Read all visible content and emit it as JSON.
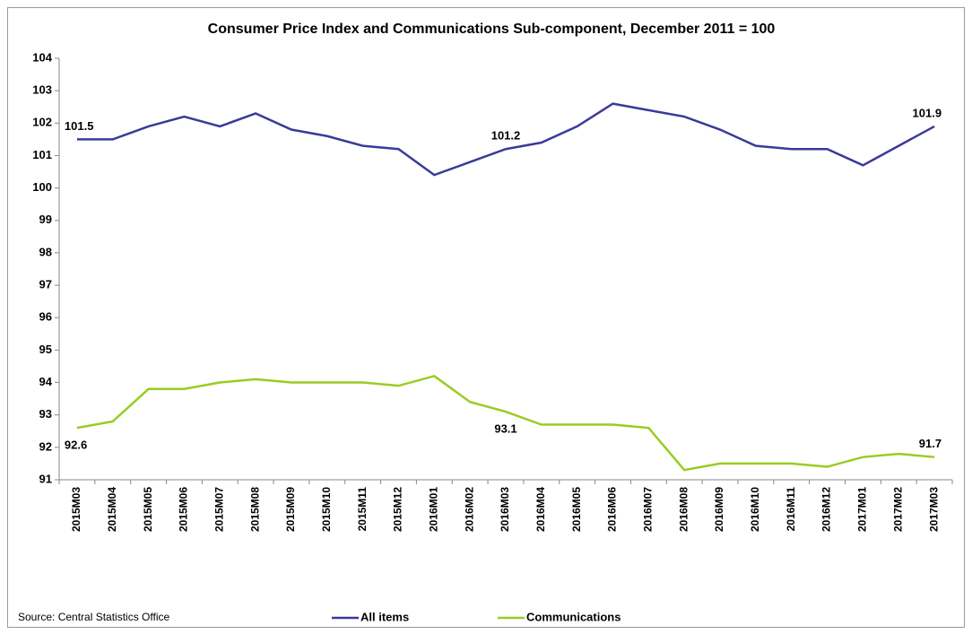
{
  "chart_data": {
    "type": "line",
    "title": "Consumer Price Index and Communications Sub-component, December 2011 = 100",
    "source": "Source: Central Statistics Office",
    "categories": [
      "2015M03",
      "2015M04",
      "2015M05",
      "2015M06",
      "2015M07",
      "2015M08",
      "2015M09",
      "2015M10",
      "2015M11",
      "2015M12",
      "2016M01",
      "2016M02",
      "2016M03",
      "2016M04",
      "2016M05",
      "2016M06",
      "2016M07",
      "2016M08",
      "2016M09",
      "2016M10",
      "2016M11",
      "2016M12",
      "2017M01",
      "2017M02",
      "2017M03"
    ],
    "series": [
      {
        "name": "All items",
        "color": "#3a3a9a",
        "values": [
          101.5,
          101.5,
          101.9,
          102.2,
          101.9,
          102.3,
          101.8,
          101.6,
          101.3,
          101.2,
          100.4,
          100.8,
          101.2,
          101.4,
          101.9,
          102.6,
          102.4,
          102.2,
          101.8,
          101.3,
          101.2,
          101.2,
          100.7,
          101.3,
          101.9
        ],
        "value_labels": [
          "101.5",
          null,
          null,
          null,
          null,
          null,
          null,
          null,
          null,
          null,
          null,
          null,
          "101.2",
          null,
          null,
          null,
          null,
          null,
          null,
          null,
          null,
          null,
          null,
          null,
          "101.9"
        ]
      },
      {
        "name": "Communications",
        "color": "#99cc22",
        "values": [
          92.6,
          92.8,
          93.8,
          93.8,
          94.0,
          94.1,
          94.0,
          94.0,
          94.0,
          93.9,
          94.2,
          93.4,
          93.1,
          92.7,
          92.7,
          92.7,
          92.6,
          91.3,
          91.5,
          91.5,
          91.5,
          91.4,
          91.7,
          91.8,
          91.7
        ],
        "value_labels": [
          "92.6",
          null,
          null,
          null,
          null,
          null,
          null,
          null,
          null,
          null,
          null,
          null,
          "93.1",
          null,
          null,
          null,
          null,
          null,
          null,
          null,
          null,
          null,
          null,
          null,
          "91.7"
        ]
      }
    ],
    "ylim": [
      91,
      104
    ],
    "yticks": [
      91,
      92,
      93,
      94,
      95,
      96,
      97,
      98,
      99,
      100,
      101,
      102,
      103,
      104
    ],
    "grid": false,
    "legend": "bottom"
  }
}
